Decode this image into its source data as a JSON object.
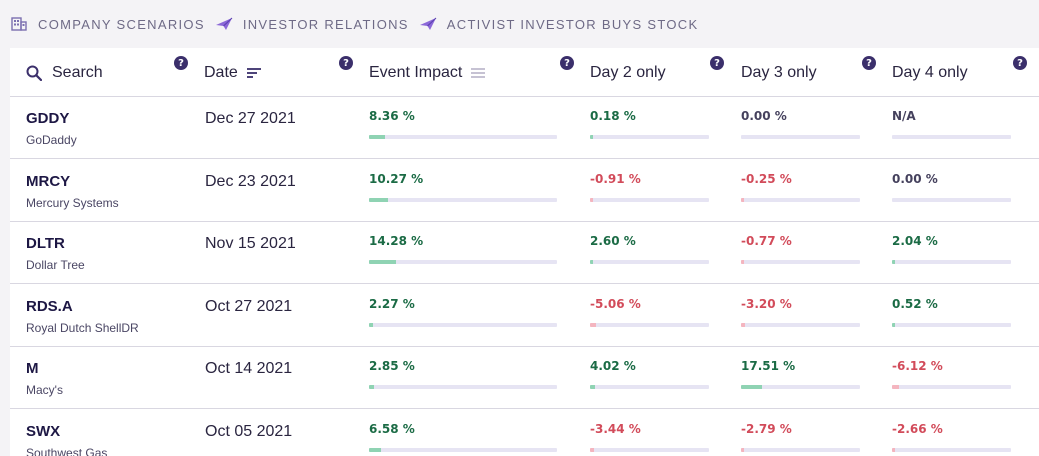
{
  "breadcrumb": [
    {
      "label": "COMPANY SCENARIOS",
      "icon": "building-icon"
    },
    {
      "label": "INVESTOR RELATIONS",
      "icon": "paper-plane-icon"
    },
    {
      "label": "ACTIVIST INVESTOR BUYS STOCK",
      "icon": "paper-plane-icon"
    }
  ],
  "columns": {
    "search": "Search",
    "date": "Date",
    "event": "Event Impact",
    "day2": "Day 2 only",
    "day3": "Day 3 only",
    "day4": "Day 4 only",
    "help": "?"
  },
  "colors": {
    "accent": "#3b2f6b",
    "positive": "#1b6b45",
    "negative": "#d24b5a",
    "bar_track": "#e6e4f3"
  },
  "rows": [
    {
      "ticker": "GDDY",
      "company": "GoDaddy",
      "date": "Dec 27 2021",
      "event": {
        "text": "8.36 %",
        "pct": 8.36
      },
      "day2": {
        "text": "0.18 %",
        "pct": 0.18
      },
      "day3": {
        "text": "0.00 %",
        "pct": 0.0
      },
      "day4": {
        "text": "N/A",
        "pct": null
      }
    },
    {
      "ticker": "MRCY",
      "company": "Mercury Systems",
      "date": "Dec 23 2021",
      "event": {
        "text": "10.27 %",
        "pct": 10.27
      },
      "day2": {
        "text": "-0.91 %",
        "pct": -0.91
      },
      "day3": {
        "text": "-0.25 %",
        "pct": -0.25
      },
      "day4": {
        "text": "0.00 %",
        "pct": 0.0
      }
    },
    {
      "ticker": "DLTR",
      "company": "Dollar Tree",
      "date": "Nov 15 2021",
      "event": {
        "text": "14.28 %",
        "pct": 14.28
      },
      "day2": {
        "text": "2.60 %",
        "pct": 2.6
      },
      "day3": {
        "text": "-0.77 %",
        "pct": -0.77
      },
      "day4": {
        "text": "2.04 %",
        "pct": 2.04
      }
    },
    {
      "ticker": "RDS.A",
      "company": "Royal Dutch ShellDR",
      "date": "Oct 27 2021",
      "event": {
        "text": "2.27 %",
        "pct": 2.27
      },
      "day2": {
        "text": "-5.06 %",
        "pct": -5.06
      },
      "day3": {
        "text": "-3.20 %",
        "pct": -3.2
      },
      "day4": {
        "text": "0.52 %",
        "pct": 0.52
      }
    },
    {
      "ticker": "M",
      "company": "Macy's",
      "date": "Oct 14 2021",
      "event": {
        "text": "2.85 %",
        "pct": 2.85
      },
      "day2": {
        "text": "4.02 %",
        "pct": 4.02
      },
      "day3": {
        "text": "17.51 %",
        "pct": 17.51
      },
      "day4": {
        "text": "-6.12 %",
        "pct": -6.12
      }
    },
    {
      "ticker": "SWX",
      "company": "Southwest Gas",
      "date": "Oct 05 2021",
      "event": {
        "text": "6.58 %",
        "pct": 6.58
      },
      "day2": {
        "text": "-3.44 %",
        "pct": -3.44
      },
      "day3": {
        "text": "-2.79 %",
        "pct": -2.79
      },
      "day4": {
        "text": "-2.66 %",
        "pct": -2.66
      }
    }
  ]
}
